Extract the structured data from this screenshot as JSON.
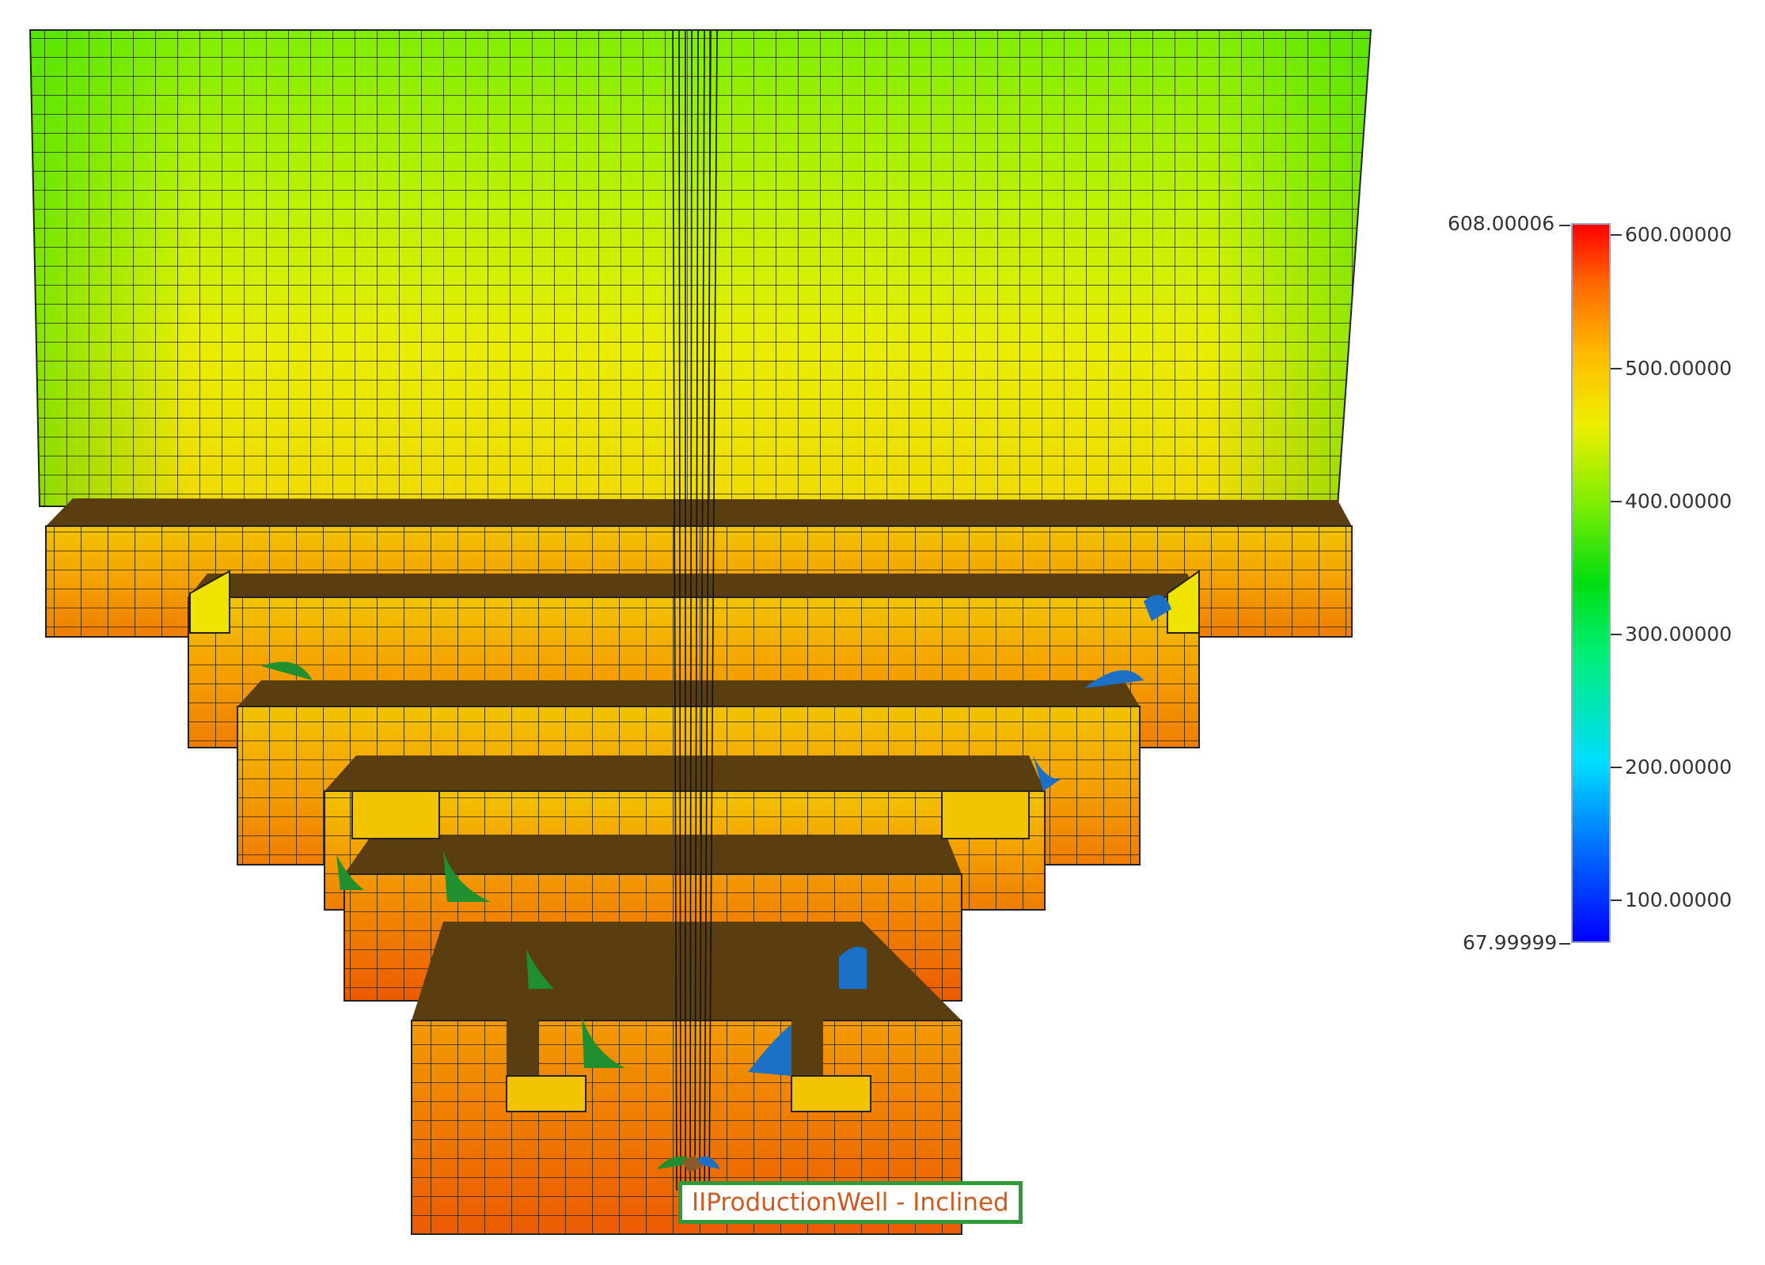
{
  "legend": {
    "min_label": "67.99999",
    "max_label": "608.00006",
    "ticks": [
      {
        "label": "600.00000",
        "value": 600
      },
      {
        "label": "500.00000",
        "value": 500
      },
      {
        "label": "400.00000",
        "value": 400
      },
      {
        "label": "300.00000",
        "value": 300
      },
      {
        "label": "200.00000",
        "value": 200
      },
      {
        "label": "100.00000",
        "value": 100
      }
    ],
    "min_value": 67.99999,
    "max_value": 608.00006,
    "colors": [
      "#0000ff",
      "#00aaff",
      "#00e5ff",
      "#00ff66",
      "#22e000",
      "#9ff000",
      "#ffff00",
      "#ffc000",
      "#ff7000",
      "#ff0000"
    ]
  },
  "well": {
    "label": "IIProductionWell - Inclined"
  },
  "colors": {
    "grid_line": "#1a1a1a",
    "cell_top_dark": "#5a3a0c",
    "well_marker_green": "#1f8f2f",
    "well_marker_blue": "#1b6fc4"
  }
}
